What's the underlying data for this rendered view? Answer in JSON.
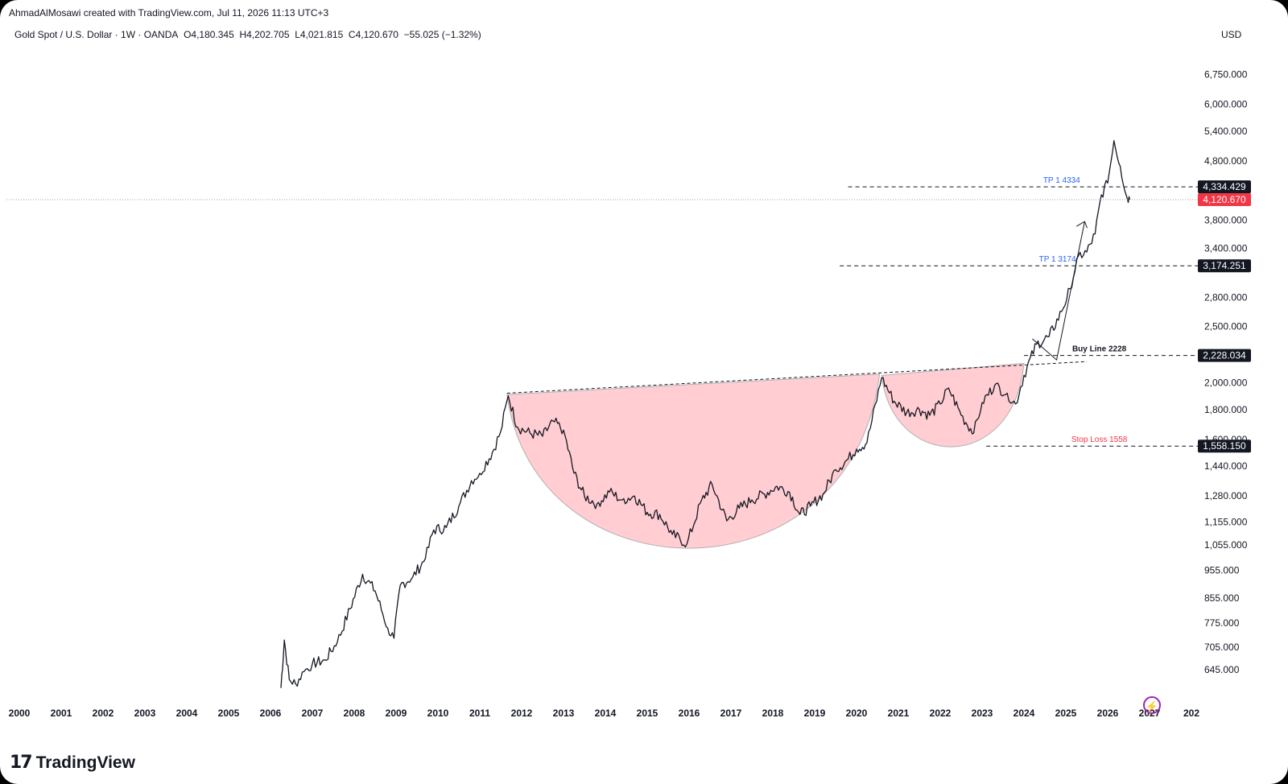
{
  "header": {
    "credit": "AhmadAlMosawi created with TradingView.com, Jul 11, 2026 11:13 UTC+3",
    "symbol": "Gold Spot / U.S. Dollar · 1W · OANDA",
    "ohlc": {
      "open": "O4,180.345",
      "high": "H4,202.705",
      "low": "L4,021.815",
      "close": "C4,120.670",
      "change": "−55.025 (−1.32%)"
    },
    "currency": "USD"
  },
  "footer": {
    "brand": "TradingView",
    "logo_icon": "tv-logo-icon",
    "bolt_icon": "lightning-icon"
  },
  "colors": {
    "price": "#131722",
    "cup_fill": "#ffcdd2",
    "tp_label": "#2962ff",
    "stop_label": "#f23645",
    "last_price": "#f23645"
  },
  "chart_data": {
    "type": "line",
    "title": "Gold Spot / U.S. Dollar",
    "interval": "1W",
    "scale": "log",
    "x_range": [
      2000,
      2028
    ],
    "y_range": [
      590,
      7300
    ],
    "x_ticks": [
      "2000",
      "2001",
      "2002",
      "2003",
      "2004",
      "2005",
      "2006",
      "2007",
      "2008",
      "2009",
      "2010",
      "2011",
      "2012",
      "2013",
      "2014",
      "2015",
      "2016",
      "2017",
      "2018",
      "2019",
      "2020",
      "2021",
      "2022",
      "2023",
      "2024",
      "2025",
      "2026",
      "2027",
      "202"
    ],
    "y_ticks": [
      "6,750.000",
      "6,000.000",
      "5,400.000",
      "4,800.000",
      "3,800.000",
      "3,400.000",
      "2,800.000",
      "2,500.000",
      "2,000.000",
      "1,800.000",
      "1,600.000",
      "1,440.000",
      "1,280.000",
      "1,155.000",
      "1,055.000",
      "955.000",
      "855.000",
      "775.000",
      "705.000",
      "645.000"
    ],
    "series": [
      {
        "x": [
          2006.25,
          2006.33,
          2006.45,
          2006.6,
          2006.8,
          2007.0,
          2007.3,
          2007.6,
          2007.9,
          2008.2,
          2008.5,
          2008.8,
          2008.95,
          2009.1,
          2009.4,
          2009.7,
          2009.9,
          2010.2,
          2010.5,
          2010.8,
          2011.0,
          2011.3,
          2011.5,
          2011.68,
          2011.9,
          2012.2,
          2012.5,
          2012.75,
          2013.0,
          2013.25,
          2013.5,
          2013.8,
          2014.1,
          2014.4,
          2014.7,
          2015.0,
          2015.3,
          2015.6,
          2015.95,
          2016.3,
          2016.55,
          2016.9,
          2017.2,
          2017.5,
          2017.8,
          2018.1,
          2018.4,
          2018.65,
          2018.9,
          2019.2,
          2019.5,
          2019.8,
          2020.0,
          2020.25,
          2020.6,
          2020.9,
          2021.2,
          2021.5,
          2021.75,
          2022.0,
          2022.2,
          2022.5,
          2022.8,
          2023.0,
          2023.3,
          2023.6,
          2023.8,
          2024.0,
          2024.3,
          2024.6,
          2024.9,
          2025.1,
          2025.3,
          2025.5,
          2025.7,
          2025.85,
          2026.0,
          2026.15,
          2026.3,
          2026.45,
          2026.53
        ],
        "values": [
          600,
          725,
          620,
          610,
          640,
          660,
          670,
          720,
          820,
          940,
          880,
          760,
          730,
          900,
          930,
          1000,
          1120,
          1130,
          1230,
          1360,
          1400,
          1520,
          1650,
          1900,
          1680,
          1640,
          1620,
          1720,
          1660,
          1400,
          1280,
          1240,
          1300,
          1260,
          1280,
          1200,
          1190,
          1100,
          1060,
          1260,
          1340,
          1160,
          1220,
          1260,
          1290,
          1330,
          1300,
          1190,
          1230,
          1290,
          1420,
          1480,
          1540,
          1580,
          2040,
          1860,
          1780,
          1800,
          1760,
          1840,
          1960,
          1760,
          1640,
          1850,
          1980,
          1920,
          1840,
          2060,
          2330,
          2400,
          2650,
          2900,
          3300,
          3350,
          3600,
          4200,
          4400,
          5200,
          4700,
          4180,
          4120
        ]
      }
    ],
    "annotations": [
      {
        "label": "TP 1 4334",
        "value": 4334.429,
        "price_label": "4,334.429"
      },
      {
        "label": "TP 1 3174",
        "value": 3174.251,
        "price_label": "3,174.251"
      },
      {
        "label": "Buy Line 2228",
        "value": 2228.034,
        "price_label": "2,228.034"
      },
      {
        "label": "Stop Loss 1558",
        "value": 1558.15,
        "price_label": "1,558.150"
      }
    ],
    "last_price": {
      "value": 4120.67,
      "label": "4,120.670"
    },
    "pattern": "cup-and-handle"
  }
}
